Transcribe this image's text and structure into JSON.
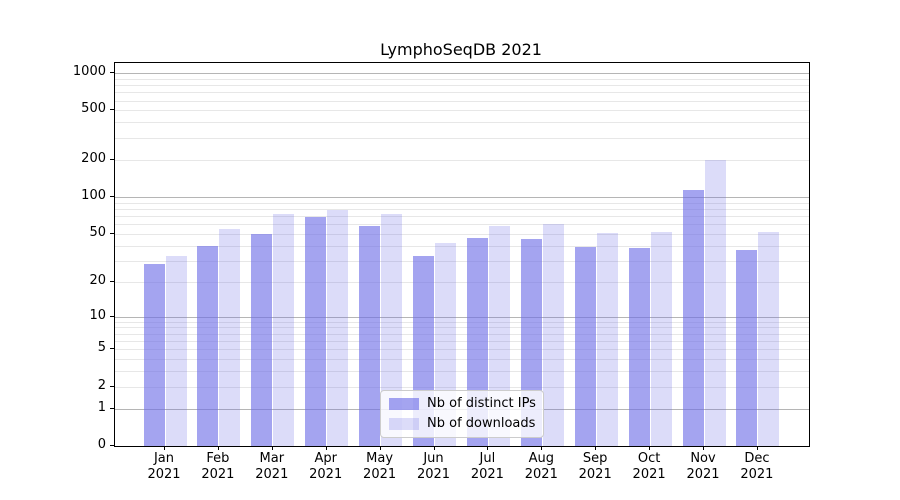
{
  "title": "LymphoSeqDB 2021",
  "legend": {
    "items": [
      {
        "label": "Nb of distinct IPs",
        "swatch": "ips"
      },
      {
        "label": "Nb of downloads",
        "swatch": "downloads"
      }
    ],
    "position": "lower center"
  },
  "colors": {
    "bar_base": "#6c6ce6",
    "bar_distinct_ips_displayed": "#a4a4f0",
    "bar_downloads_displayed": "#dcdcf9",
    "grid_major": "#b5b5b5",
    "grid_minor": "#e7e7e7",
    "spine": "#000000",
    "background": "#ffffff"
  },
  "x_tick_labels": [
    {
      "month": "Jan",
      "year": "2021"
    },
    {
      "month": "Feb",
      "year": "2021"
    },
    {
      "month": "Mar",
      "year": "2021"
    },
    {
      "month": "Apr",
      "year": "2021"
    },
    {
      "month": "May",
      "year": "2021"
    },
    {
      "month": "Jun",
      "year": "2021"
    },
    {
      "month": "Jul",
      "year": "2021"
    },
    {
      "month": "Aug",
      "year": "2021"
    },
    {
      "month": "Sep",
      "year": "2021"
    },
    {
      "month": "Oct",
      "year": "2021"
    },
    {
      "month": "Nov",
      "year": "2021"
    },
    {
      "month": "Dec",
      "year": "2021"
    }
  ],
  "chart_data": {
    "type": "bar",
    "title": "LymphoSeqDB 2021",
    "categories": [
      "Jan 2021",
      "Feb 2021",
      "Mar 2021",
      "Apr 2021",
      "May 2021",
      "Jun 2021",
      "Jul 2021",
      "Aug 2021",
      "Sep 2021",
      "Oct 2021",
      "Nov 2021",
      "Dec 2021"
    ],
    "series": [
      {
        "name": "Nb of distinct IPs",
        "values": [
          28,
          40,
          50,
          69,
          58,
          33,
          46,
          45,
          39,
          38,
          113,
          37
        ]
      },
      {
        "name": "Nb of downloads",
        "values": [
          33,
          55,
          73,
          78,
          72,
          42,
          58,
          60,
          51,
          52,
          198,
          52
        ]
      }
    ],
    "xlabel": "",
    "ylabel": "",
    "yscale": "log1p",
    "y_ticks": [
      0,
      1,
      2,
      5,
      10,
      20,
      50,
      100,
      200,
      500,
      1000
    ],
    "y_minor_gridlines": [
      2,
      3,
      4,
      5,
      6,
      7,
      8,
      9,
      20,
      30,
      40,
      50,
      60,
      70,
      80,
      90,
      200,
      300,
      400,
      500,
      600,
      700,
      800,
      900
    ],
    "y_major_gridlines": [
      1,
      10,
      100,
      1000
    ],
    "ylim": [
      0,
      1200
    ],
    "grid": "horizontal, major and minor, on",
    "legend_position": "lower center"
  }
}
